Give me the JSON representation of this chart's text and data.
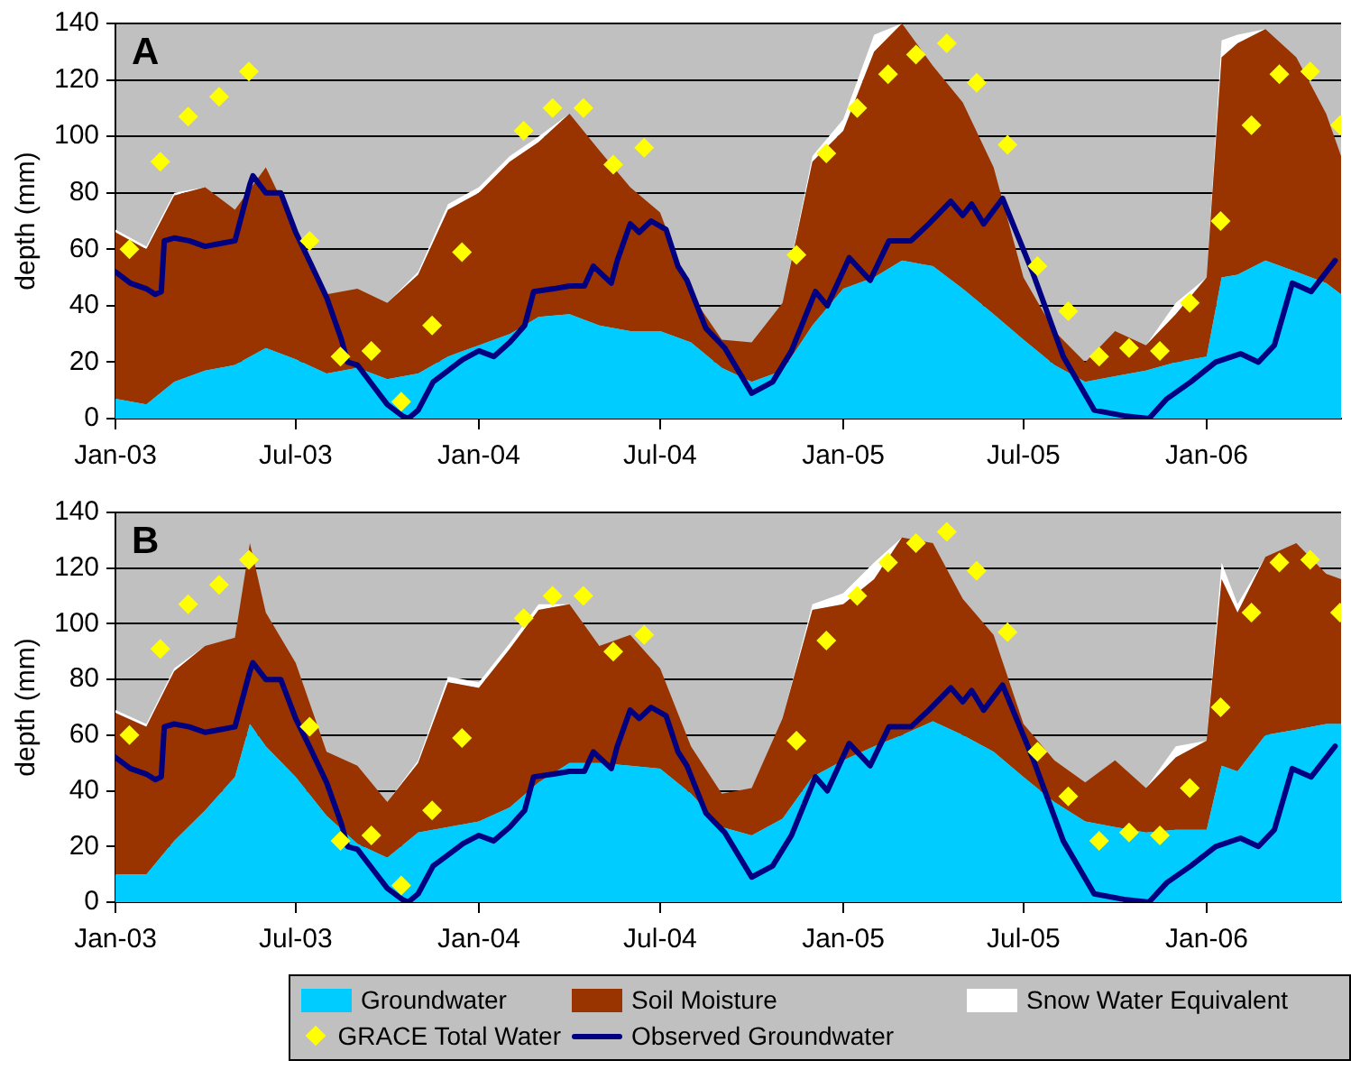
{
  "chart_data": [
    {
      "type": "area",
      "stacked": true,
      "annotations": [
        "A"
      ],
      "ylabel": "depth (mm)",
      "ylim": [
        0,
        140
      ],
      "yticks": [
        0,
        20,
        40,
        60,
        80,
        100,
        120,
        140
      ],
      "grid": "y",
      "legend": false,
      "xlim": [
        "2003-01-01",
        "2006-05-16"
      ],
      "xticks": [
        {
          "value": "2003-01-01",
          "label": "Jan-03"
        },
        {
          "value": "2003-07-01",
          "label": "Jul-03"
        },
        {
          "value": "2004-01-01",
          "label": "Jan-04"
        },
        {
          "value": "2004-07-01",
          "label": "Jul-04"
        },
        {
          "value": "2005-01-01",
          "label": "Jan-05"
        },
        {
          "value": "2005-07-01",
          "label": "Jul-05"
        },
        {
          "value": "2006-01-01",
          "label": "Jan-06"
        }
      ],
      "x": [
        "2003-01-01",
        "2003-02-01",
        "2003-03-01",
        "2003-04-01",
        "2003-05-01",
        "2003-06-01",
        "2003-07-01",
        "2003-08-01",
        "2003-09-01",
        "2003-10-01",
        "2003-11-01",
        "2003-12-01",
        "2004-01-01",
        "2004-02-01",
        "2004-03-01",
        "2004-04-01",
        "2004-05-01",
        "2004-06-01",
        "2004-07-01",
        "2004-08-01",
        "2004-09-01",
        "2004-10-01",
        "2004-11-01",
        "2004-12-01",
        "2005-01-01",
        "2005-02-01",
        "2005-03-01",
        "2005-04-01",
        "2005-05-01",
        "2005-06-01",
        "2005-07-01",
        "2005-08-01",
        "2005-09-01",
        "2005-10-01",
        "2005-11-01",
        "2005-12-01",
        "2006-01-01",
        "2006-01-16",
        "2006-02-01",
        "2006-03-01",
        "2006-04-01",
        "2006-05-01",
        "2006-05-16"
      ],
      "series": [
        {
          "color": "#00ccff",
          "values": [
            7,
            5,
            13,
            17,
            19,
            25,
            21,
            16,
            18,
            14,
            16,
            22,
            26,
            30,
            36,
            37,
            33,
            31,
            31,
            27,
            18,
            13,
            17,
            33,
            46,
            50,
            56,
            54,
            46,
            37,
            28,
            19,
            13,
            15,
            17,
            20,
            22,
            50,
            51,
            56,
            52,
            48,
            44
          ]
        },
        {
          "color": "#993300",
          "values": [
            59,
            55,
            66,
            65,
            55,
            64,
            46,
            28,
            28,
            27,
            35,
            52,
            54,
            61,
            62,
            71,
            62,
            51,
            42,
            17,
            10,
            14,
            24,
            58,
            56,
            80,
            84,
            71,
            66,
            52,
            22,
            12,
            7,
            16,
            9,
            17,
            28,
            78,
            82,
            82,
            76,
            60,
            49
          ]
        },
        {
          "color": "#ffffff",
          "values": [
            1,
            1,
            1,
            0,
            0,
            0,
            0,
            0,
            0,
            0,
            1,
            2,
            2,
            2,
            2,
            0,
            0,
            0,
            0,
            0,
            0,
            0,
            0,
            2,
            4,
            6,
            0,
            0,
            0,
            0,
            0,
            0,
            0,
            0,
            0,
            4,
            0,
            6,
            3,
            0,
            0,
            0,
            0
          ]
        },
        {
          "type": "scatter",
          "marker": "diamond",
          "color": "#ffff00",
          "x": [
            "2003-01-15",
            "2003-02-15",
            "2003-03-15",
            "2003-04-15",
            "2003-05-15",
            "2003-07-15",
            "2003-08-15",
            "2003-09-15",
            "2003-10-15",
            "2003-11-15",
            "2003-12-15",
            "2004-02-15",
            "2004-03-15",
            "2004-04-15",
            "2004-05-15",
            "2004-06-15",
            "2004-11-15",
            "2004-12-15",
            "2005-01-15",
            "2005-02-15",
            "2005-03-15",
            "2005-04-15",
            "2005-05-15",
            "2005-06-15",
            "2005-07-15",
            "2005-08-15",
            "2005-09-15",
            "2005-10-15",
            "2005-11-15",
            "2005-12-15",
            "2006-01-15",
            "2006-02-15",
            "2006-03-15",
            "2006-04-15",
            "2006-05-15"
          ],
          "values": [
            60,
            91,
            107,
            114,
            123,
            63,
            22,
            24,
            6,
            33,
            59,
            102,
            110,
            110,
            90,
            96,
            58,
            94,
            110,
            122,
            129,
            133,
            119,
            97,
            54,
            38,
            22,
            25,
            24,
            41,
            70,
            104,
            122,
            123,
            104
          ]
        },
        {
          "type": "line",
          "color": "#000080",
          "x": [
            "2003-01-01",
            "2003-01-16",
            "2003-02-01",
            "2003-02-10",
            "2003-02-16",
            "2003-02-19",
            "2003-03-01",
            "2003-03-16",
            "2003-04-01",
            "2003-04-16",
            "2003-05-01",
            "2003-05-16",
            "2003-05-19",
            "2003-06-01",
            "2003-06-16",
            "2003-07-01",
            "2003-07-16",
            "2003-08-01",
            "2003-08-16",
            "2003-08-22",
            "2003-09-01",
            "2003-09-16",
            "2003-10-01",
            "2003-10-16",
            "2003-10-22",
            "2003-11-01",
            "2003-11-16",
            "2003-12-01",
            "2003-12-16",
            "2004-01-01",
            "2004-01-16",
            "2004-02-01",
            "2004-02-16",
            "2004-02-25",
            "2004-03-16",
            "2004-04-01",
            "2004-04-16",
            "2004-04-25",
            "2004-05-13",
            "2004-05-19",
            "2004-06-01",
            "2004-06-10",
            "2004-06-22",
            "2004-07-07",
            "2004-07-19",
            "2004-07-28",
            "2004-08-16",
            "2004-09-04",
            "2004-10-01",
            "2004-10-22",
            "2004-11-10",
            "2004-12-04",
            "2004-12-16",
            "2005-01-07",
            "2005-01-28",
            "2005-02-16",
            "2005-03-10",
            "2005-03-28",
            "2005-04-19",
            "2005-05-01",
            "2005-05-10",
            "2005-05-22",
            "2005-06-10",
            "2005-07-10",
            "2005-08-10",
            "2005-09-10",
            "2005-10-10",
            "2005-11-04",
            "2005-11-22",
            "2005-12-16",
            "2006-01-10",
            "2006-02-04",
            "2006-02-22",
            "2006-03-10",
            "2006-03-28",
            "2006-04-16",
            "2006-05-10"
          ],
          "values": [
            52,
            48,
            46,
            44,
            45,
            63,
            64,
            63,
            61,
            62,
            63,
            83,
            86,
            80,
            80,
            66,
            55,
            43,
            28,
            20,
            19,
            12,
            5,
            1,
            0,
            3,
            13,
            17,
            21,
            24,
            22,
            27,
            33,
            45,
            46,
            47,
            47,
            54,
            48,
            56,
            69,
            66,
            70,
            67,
            54,
            49,
            32,
            25,
            9,
            13,
            24,
            45,
            40,
            57,
            49,
            63,
            63,
            69,
            77,
            72,
            76,
            69,
            78,
            52,
            22,
            3,
            1,
            0,
            7,
            13,
            20,
            23,
            20,
            26,
            48,
            45,
            56
          ]
        }
      ]
    },
    {
      "type": "area",
      "stacked": true,
      "annotations": [
        "B"
      ],
      "ylabel": "depth (mm)",
      "ylim": [
        0,
        140
      ],
      "yticks": [
        0,
        20,
        40,
        60,
        80,
        100,
        120,
        140
      ],
      "grid": "y",
      "legend": "bottom",
      "xlim": [
        "2003-01-01",
        "2006-05-16"
      ],
      "xticks": [
        {
          "value": "2003-01-01",
          "label": "Jan-03"
        },
        {
          "value": "2003-07-01",
          "label": "Jul-03"
        },
        {
          "value": "2004-01-01",
          "label": "Jan-04"
        },
        {
          "value": "2004-07-01",
          "label": "Jul-04"
        },
        {
          "value": "2005-01-01",
          "label": "Jan-05"
        },
        {
          "value": "2005-07-01",
          "label": "Jul-05"
        },
        {
          "value": "2006-01-01",
          "label": "Jan-06"
        }
      ],
      "x": [
        "2003-01-01",
        "2003-02-01",
        "2003-03-01",
        "2003-04-01",
        "2003-05-01",
        "2003-05-16",
        "2003-06-01",
        "2003-07-01",
        "2003-08-01",
        "2003-09-01",
        "2003-10-01",
        "2003-11-01",
        "2003-12-01",
        "2004-01-01",
        "2004-02-01",
        "2004-03-01",
        "2004-04-01",
        "2004-05-01",
        "2004-06-01",
        "2004-07-01",
        "2004-08-01",
        "2004-09-01",
        "2004-10-01",
        "2004-11-01",
        "2004-12-01",
        "2005-01-01",
        "2005-02-01",
        "2005-03-01",
        "2005-04-01",
        "2005-05-01",
        "2005-06-01",
        "2005-07-01",
        "2005-08-01",
        "2005-09-01",
        "2005-10-01",
        "2005-11-01",
        "2005-12-01",
        "2006-01-01",
        "2006-01-16",
        "2006-02-01",
        "2006-03-01",
        "2006-04-01",
        "2006-05-01",
        "2006-05-16"
      ],
      "series": [
        {
          "name": "Groundwater",
          "color": "#00ccff",
          "values": [
            10,
            10,
            22,
            33,
            45,
            64,
            56,
            45,
            31,
            21,
            16,
            25,
            27,
            29,
            34,
            43,
            50,
            50,
            49,
            48,
            39,
            27,
            24,
            30,
            45,
            51,
            56,
            60,
            65,
            60,
            54,
            45,
            36,
            29,
            27,
            25,
            26,
            26,
            49,
            47,
            60,
            62,
            64,
            64
          ]
        },
        {
          "name": "Soil Moisture",
          "color": "#993300",
          "values": [
            58,
            53,
            61,
            59,
            50,
            65,
            48,
            41,
            23,
            28,
            20,
            25,
            52,
            48,
            57,
            62,
            57,
            42,
            47,
            36,
            17,
            12,
            17,
            36,
            60,
            56,
            60,
            71,
            64,
            49,
            42,
            19,
            15,
            14,
            24,
            16,
            26,
            32,
            67,
            57,
            64,
            67,
            54,
            52
          ]
        },
        {
          "name": "Snow Water Equivalent",
          "color": "#ffffff",
          "values": [
            1,
            1,
            1,
            0,
            0,
            0,
            0,
            0,
            0,
            0,
            0,
            1,
            2,
            2,
            2,
            2,
            0,
            0,
            0,
            0,
            0,
            0,
            0,
            0,
            2,
            4,
            6,
            0,
            0,
            0,
            0,
            0,
            0,
            0,
            0,
            0,
            4,
            0,
            6,
            3,
            0,
            0,
            0,
            0
          ]
        },
        {
          "name": "GRACE Total Water",
          "type": "scatter",
          "marker": "diamond",
          "color": "#ffff00",
          "x": [
            "2003-01-15",
            "2003-02-15",
            "2003-03-15",
            "2003-04-15",
            "2003-05-15",
            "2003-07-15",
            "2003-08-15",
            "2003-09-15",
            "2003-10-15",
            "2003-11-15",
            "2003-12-15",
            "2004-02-15",
            "2004-03-15",
            "2004-04-15",
            "2004-05-15",
            "2004-06-15",
            "2004-11-15",
            "2004-12-15",
            "2005-01-15",
            "2005-02-15",
            "2005-03-15",
            "2005-04-15",
            "2005-05-15",
            "2005-06-15",
            "2005-07-15",
            "2005-08-15",
            "2005-09-15",
            "2005-10-15",
            "2005-11-15",
            "2005-12-15",
            "2006-01-15",
            "2006-02-15",
            "2006-03-15",
            "2006-04-15",
            "2006-05-15"
          ],
          "values": [
            60,
            91,
            107,
            114,
            123,
            63,
            22,
            24,
            6,
            33,
            59,
            102,
            110,
            110,
            90,
            96,
            58,
            94,
            110,
            122,
            129,
            133,
            119,
            97,
            54,
            38,
            22,
            25,
            24,
            41,
            70,
            104,
            122,
            123,
            104
          ]
        },
        {
          "name": "Observed Groundwater",
          "type": "line",
          "color": "#000080",
          "x": [
            "2003-01-01",
            "2003-01-16",
            "2003-02-01",
            "2003-02-10",
            "2003-02-16",
            "2003-02-19",
            "2003-03-01",
            "2003-03-16",
            "2003-04-01",
            "2003-04-16",
            "2003-05-01",
            "2003-05-16",
            "2003-05-19",
            "2003-06-01",
            "2003-06-16",
            "2003-07-01",
            "2003-07-16",
            "2003-08-01",
            "2003-08-16",
            "2003-08-22",
            "2003-09-01",
            "2003-09-16",
            "2003-10-01",
            "2003-10-16",
            "2003-10-22",
            "2003-11-01",
            "2003-11-16",
            "2003-12-01",
            "2003-12-16",
            "2004-01-01",
            "2004-01-16",
            "2004-02-01",
            "2004-02-16",
            "2004-02-25",
            "2004-03-16",
            "2004-04-01",
            "2004-04-16",
            "2004-04-25",
            "2004-05-13",
            "2004-05-19",
            "2004-06-01",
            "2004-06-10",
            "2004-06-22",
            "2004-07-07",
            "2004-07-19",
            "2004-07-28",
            "2004-08-16",
            "2004-09-04",
            "2004-10-01",
            "2004-10-22",
            "2004-11-10",
            "2004-12-04",
            "2004-12-16",
            "2005-01-07",
            "2005-01-28",
            "2005-02-16",
            "2005-03-10",
            "2005-03-28",
            "2005-04-19",
            "2005-05-01",
            "2005-05-10",
            "2005-05-22",
            "2005-06-10",
            "2005-07-10",
            "2005-08-10",
            "2005-09-10",
            "2005-10-10",
            "2005-11-04",
            "2005-11-22",
            "2005-12-16",
            "2006-01-10",
            "2006-02-04",
            "2006-02-22",
            "2006-03-10",
            "2006-03-28",
            "2006-04-16",
            "2006-05-10"
          ],
          "values": [
            52,
            48,
            46,
            44,
            45,
            63,
            64,
            63,
            61,
            62,
            63,
            83,
            86,
            80,
            80,
            66,
            55,
            43,
            28,
            20,
            19,
            12,
            5,
            1,
            0,
            3,
            13,
            17,
            21,
            24,
            22,
            27,
            33,
            45,
            46,
            47,
            47,
            54,
            48,
            56,
            69,
            66,
            70,
            67,
            54,
            49,
            32,
            25,
            9,
            13,
            24,
            45,
            40,
            57,
            49,
            63,
            63,
            69,
            77,
            72,
            76,
            69,
            78,
            52,
            22,
            3,
            1,
            0,
            7,
            13,
            20,
            23,
            20,
            26,
            48,
            45,
            56
          ]
        }
      ]
    }
  ]
}
